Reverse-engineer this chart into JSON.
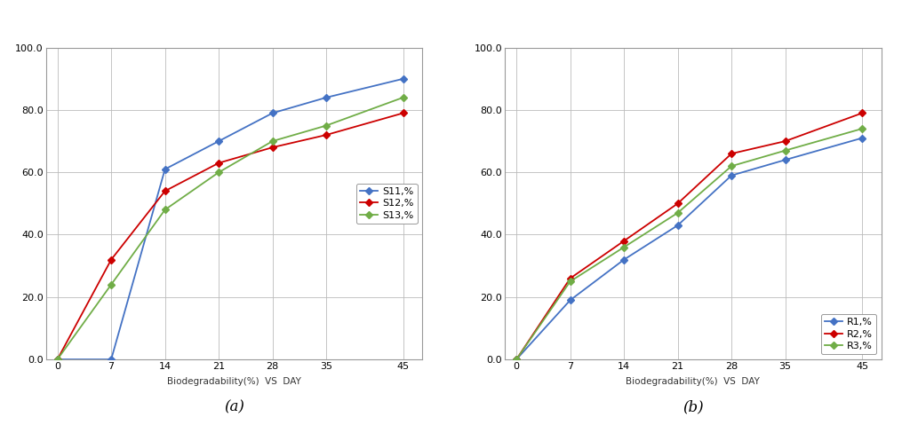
{
  "days": [
    0,
    7,
    14,
    21,
    28,
    35,
    45
  ],
  "chart_a": {
    "series": [
      {
        "key": "S11",
        "values": [
          0.0,
          0.0,
          61.0,
          70.0,
          79.0,
          84.0,
          90.0
        ],
        "label": "S11,%",
        "color": "#4472C4"
      },
      {
        "key": "S12",
        "values": [
          0.0,
          32.0,
          54.0,
          63.0,
          68.0,
          72.0,
          79.0
        ],
        "label": "S12,%",
        "color": "#CC0000"
      },
      {
        "key": "S13",
        "values": [
          0.0,
          24.0,
          48.0,
          60.0,
          70.0,
          75.0,
          84.0
        ],
        "label": "S13,%",
        "color": "#70AD47"
      }
    ],
    "xlabel": "Biodegradability(%)  VS  DAY",
    "ylim": [
      0,
      100
    ],
    "yticks": [
      0.0,
      20.0,
      40.0,
      60.0,
      80.0,
      100.0
    ],
    "xticks": [
      0,
      7,
      14,
      21,
      28,
      35,
      45
    ],
    "legend_loc": "center right",
    "subplot_label": "(a)"
  },
  "chart_b": {
    "series": [
      {
        "key": "R1",
        "values": [
          0.0,
          19.0,
          32.0,
          43.0,
          59.0,
          64.0,
          71.0
        ],
        "label": "R1,%",
        "color": "#4472C4"
      },
      {
        "key": "R2",
        "values": [
          0.0,
          26.0,
          38.0,
          50.0,
          66.0,
          70.0,
          79.0
        ],
        "label": "R2,%",
        "color": "#CC0000"
      },
      {
        "key": "R3",
        "values": [
          0.0,
          25.0,
          36.0,
          47.0,
          62.0,
          67.0,
          74.0
        ],
        "label": "R3,%",
        "color": "#70AD47"
      }
    ],
    "xlabel": "Biodegradability(%)  VS  DAY",
    "ylim": [
      0,
      100
    ],
    "yticks": [
      0.0,
      20.0,
      40.0,
      60.0,
      80.0,
      100.0
    ],
    "xticks": [
      0,
      7,
      14,
      21,
      28,
      35,
      45
    ],
    "legend_loc": "lower right",
    "subplot_label": "(b)"
  },
  "fig_bg": "#FFFFFF",
  "plot_bg": "#FFFFFF",
  "marker": "D",
  "marker_size": 4,
  "linewidth": 1.3,
  "grid_color": "#BBBBBB",
  "grid_linewidth": 0.6,
  "axis_color": "#999999",
  "label_fontsize": 7.5,
  "tick_fontsize": 8,
  "legend_fontsize": 8,
  "subplot_label_fontsize": 12
}
